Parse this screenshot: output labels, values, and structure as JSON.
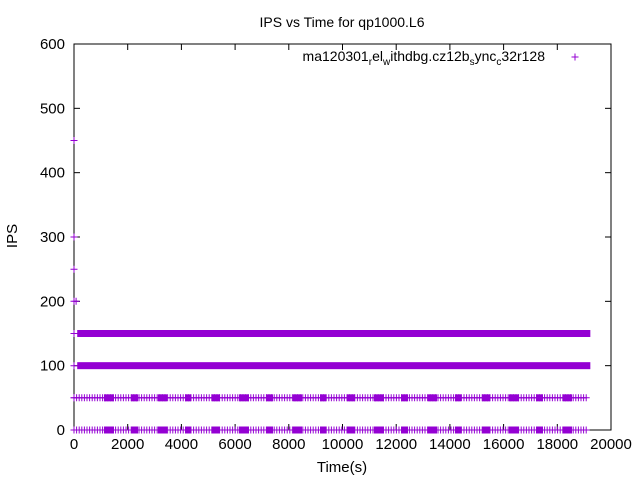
{
  "chart_data": {
    "type": "scatter",
    "title": "IPS vs Time for qp1000.L6",
    "xlabel": "Time(s)",
    "ylabel": "IPS",
    "xlim": [
      0,
      20000
    ],
    "ylim": [
      0,
      600
    ],
    "x_ticks": [
      0,
      2000,
      4000,
      6000,
      8000,
      10000,
      12000,
      14000,
      16000,
      18000,
      20000
    ],
    "y_ticks": [
      0,
      100,
      200,
      300,
      400,
      500,
      600
    ],
    "x_tick_labels": [
      "0",
      "2000",
      "4000",
      "6000",
      "8000",
      "10000",
      "12000",
      "14000",
      "16000",
      "18000",
      "20000"
    ],
    "y_tick_labels": [
      "0",
      "100",
      "200",
      "300",
      "400",
      "500",
      "600"
    ],
    "grid": false,
    "legend_position": "top-right",
    "marker": "+",
    "series": [
      {
        "name": "ma120301_rel_withdbg.cz12b_sync_c32r128",
        "color": "#9400d3",
        "bands": [
          {
            "y": 150,
            "x_start": 250,
            "x_end": 19100,
            "density": "dense"
          },
          {
            "y": 100,
            "x_start": 250,
            "x_end": 19100,
            "density": "dense"
          },
          {
            "y": 50,
            "x_start": 0,
            "x_end": 19100,
            "density": "sparse"
          },
          {
            "y": 0,
            "x_start": 0,
            "x_end": 19100,
            "density": "sparse"
          }
        ],
        "points": [
          {
            "x": 0,
            "y": 450
          },
          {
            "x": 0,
            "y": 300
          },
          {
            "x": 0,
            "y": 250
          },
          {
            "x": 0,
            "y": 200
          },
          {
            "x": 80,
            "y": 200
          },
          {
            "x": 0,
            "y": 150
          },
          {
            "x": 0,
            "y": 100
          },
          {
            "x": 0,
            "y": 50
          },
          {
            "x": 0,
            "y": 0
          }
        ]
      }
    ]
  }
}
